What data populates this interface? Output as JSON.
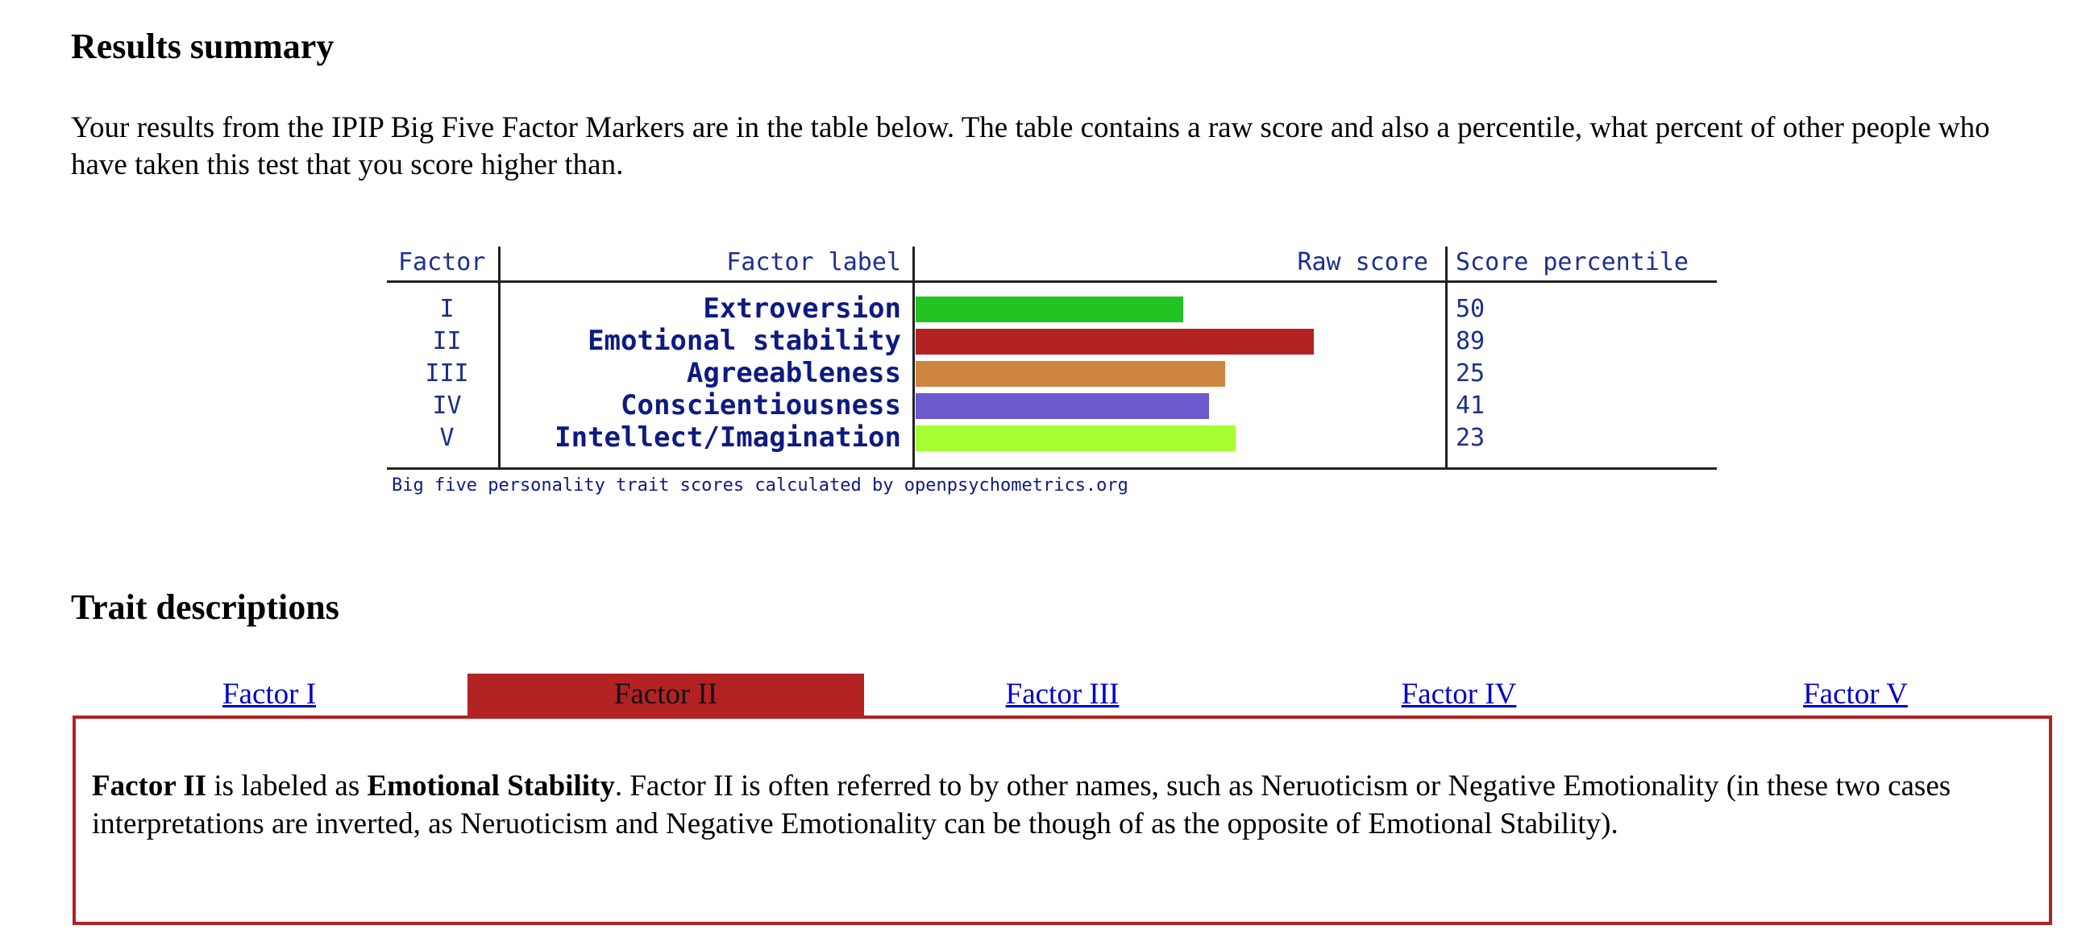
{
  "summary": {
    "title": "Results summary",
    "intro": "Your results from the IPIP Big Five Factor Markers are in the table below. The table contains a raw score and also a percentile, what percent of other people who have taken this test that you score higher than."
  },
  "table": {
    "headers": {
      "factor": "Factor",
      "label": "Factor label",
      "raw": "Raw score",
      "percentile": "Score percentile"
    },
    "credit": "Big five personality trait scores calculated by openpsychometrics.org",
    "rows": [
      {
        "roman": "I",
        "label": "Extroversion",
        "percentile": "50",
        "raw_fraction": 0.51,
        "color": "#22c222"
      },
      {
        "roman": "II",
        "label": "Emotional stability",
        "percentile": "89",
        "raw_fraction": 0.76,
        "color": "#b22222"
      },
      {
        "roman": "III",
        "label": "Agreeableness",
        "percentile": "25",
        "raw_fraction": 0.59,
        "color": "#cd853f"
      },
      {
        "roman": "IV",
        "label": "Conscientiousness",
        "percentile": "41",
        "raw_fraction": 0.56,
        "color": "#6a5acd"
      },
      {
        "roman": "V",
        "label": "Intellect/Imagination",
        "percentile": "23",
        "raw_fraction": 0.61,
        "color": "#a6ff33"
      }
    ]
  },
  "traits": {
    "title": "Trait descriptions",
    "tabs": [
      "Factor I",
      "Factor II",
      "Factor III",
      "Factor IV",
      "Factor V"
    ],
    "active_tab": 1,
    "description": {
      "factor": "Factor II",
      "mid1": " is labeled as ",
      "name": "Emotional Stability",
      "rest": ". Factor II is often referred to by other names, such as Neruoticism or Negative Emotionality (in these two cases interpretations are inverted, as Neruoticism and Negative Emotionality can be though of as the opposite of Emotional Stability)."
    }
  },
  "colors": {
    "accent": "#b22222",
    "link": "#0000cc",
    "label": "#0e1a82"
  }
}
